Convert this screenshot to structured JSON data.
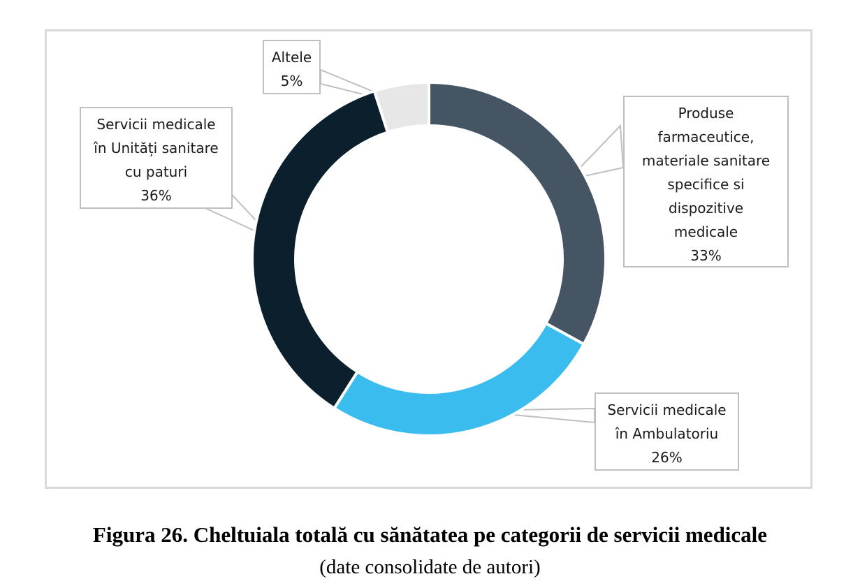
{
  "chart_data": {
    "type": "pie",
    "variant": "donut",
    "title": "Figura 26. Cheltuiala totală cu sănătatea pe categorii de servicii medicale",
    "subtitle": "(date consolidate de autori)",
    "slices": [
      {
        "name": "Produse farmaceutice, materiale sanitare specifice si dispozitive medicale",
        "value": 33,
        "label": "33%",
        "color": "#465563",
        "lines": [
          "Produse",
          "farmaceutice,",
          "materiale sanitare",
          "specifice si",
          "dispozitive",
          "medicale"
        ]
      },
      {
        "name": "Servicii medicale în Ambulatoriu",
        "value": 26,
        "label": "26%",
        "color": "#3bbcee",
        "lines": [
          "Servicii medicale",
          "în Ambulatoriu"
        ]
      },
      {
        "name": "Servicii medicale în Unități sanitare cu paturi",
        "value": 36,
        "label": "36%",
        "color": "#0b1f2d",
        "lines": [
          "Servicii medicale",
          "în Unități sanitare",
          "cu paturi"
        ]
      },
      {
        "name": "Altele",
        "value": 5,
        "label": "5%",
        "color": "#e7e7e7",
        "lines": [
          "Altele"
        ]
      }
    ],
    "start_angle": "top (12 o'clock)",
    "direction": "clockwise",
    "legend": "none (callout labels)"
  }
}
